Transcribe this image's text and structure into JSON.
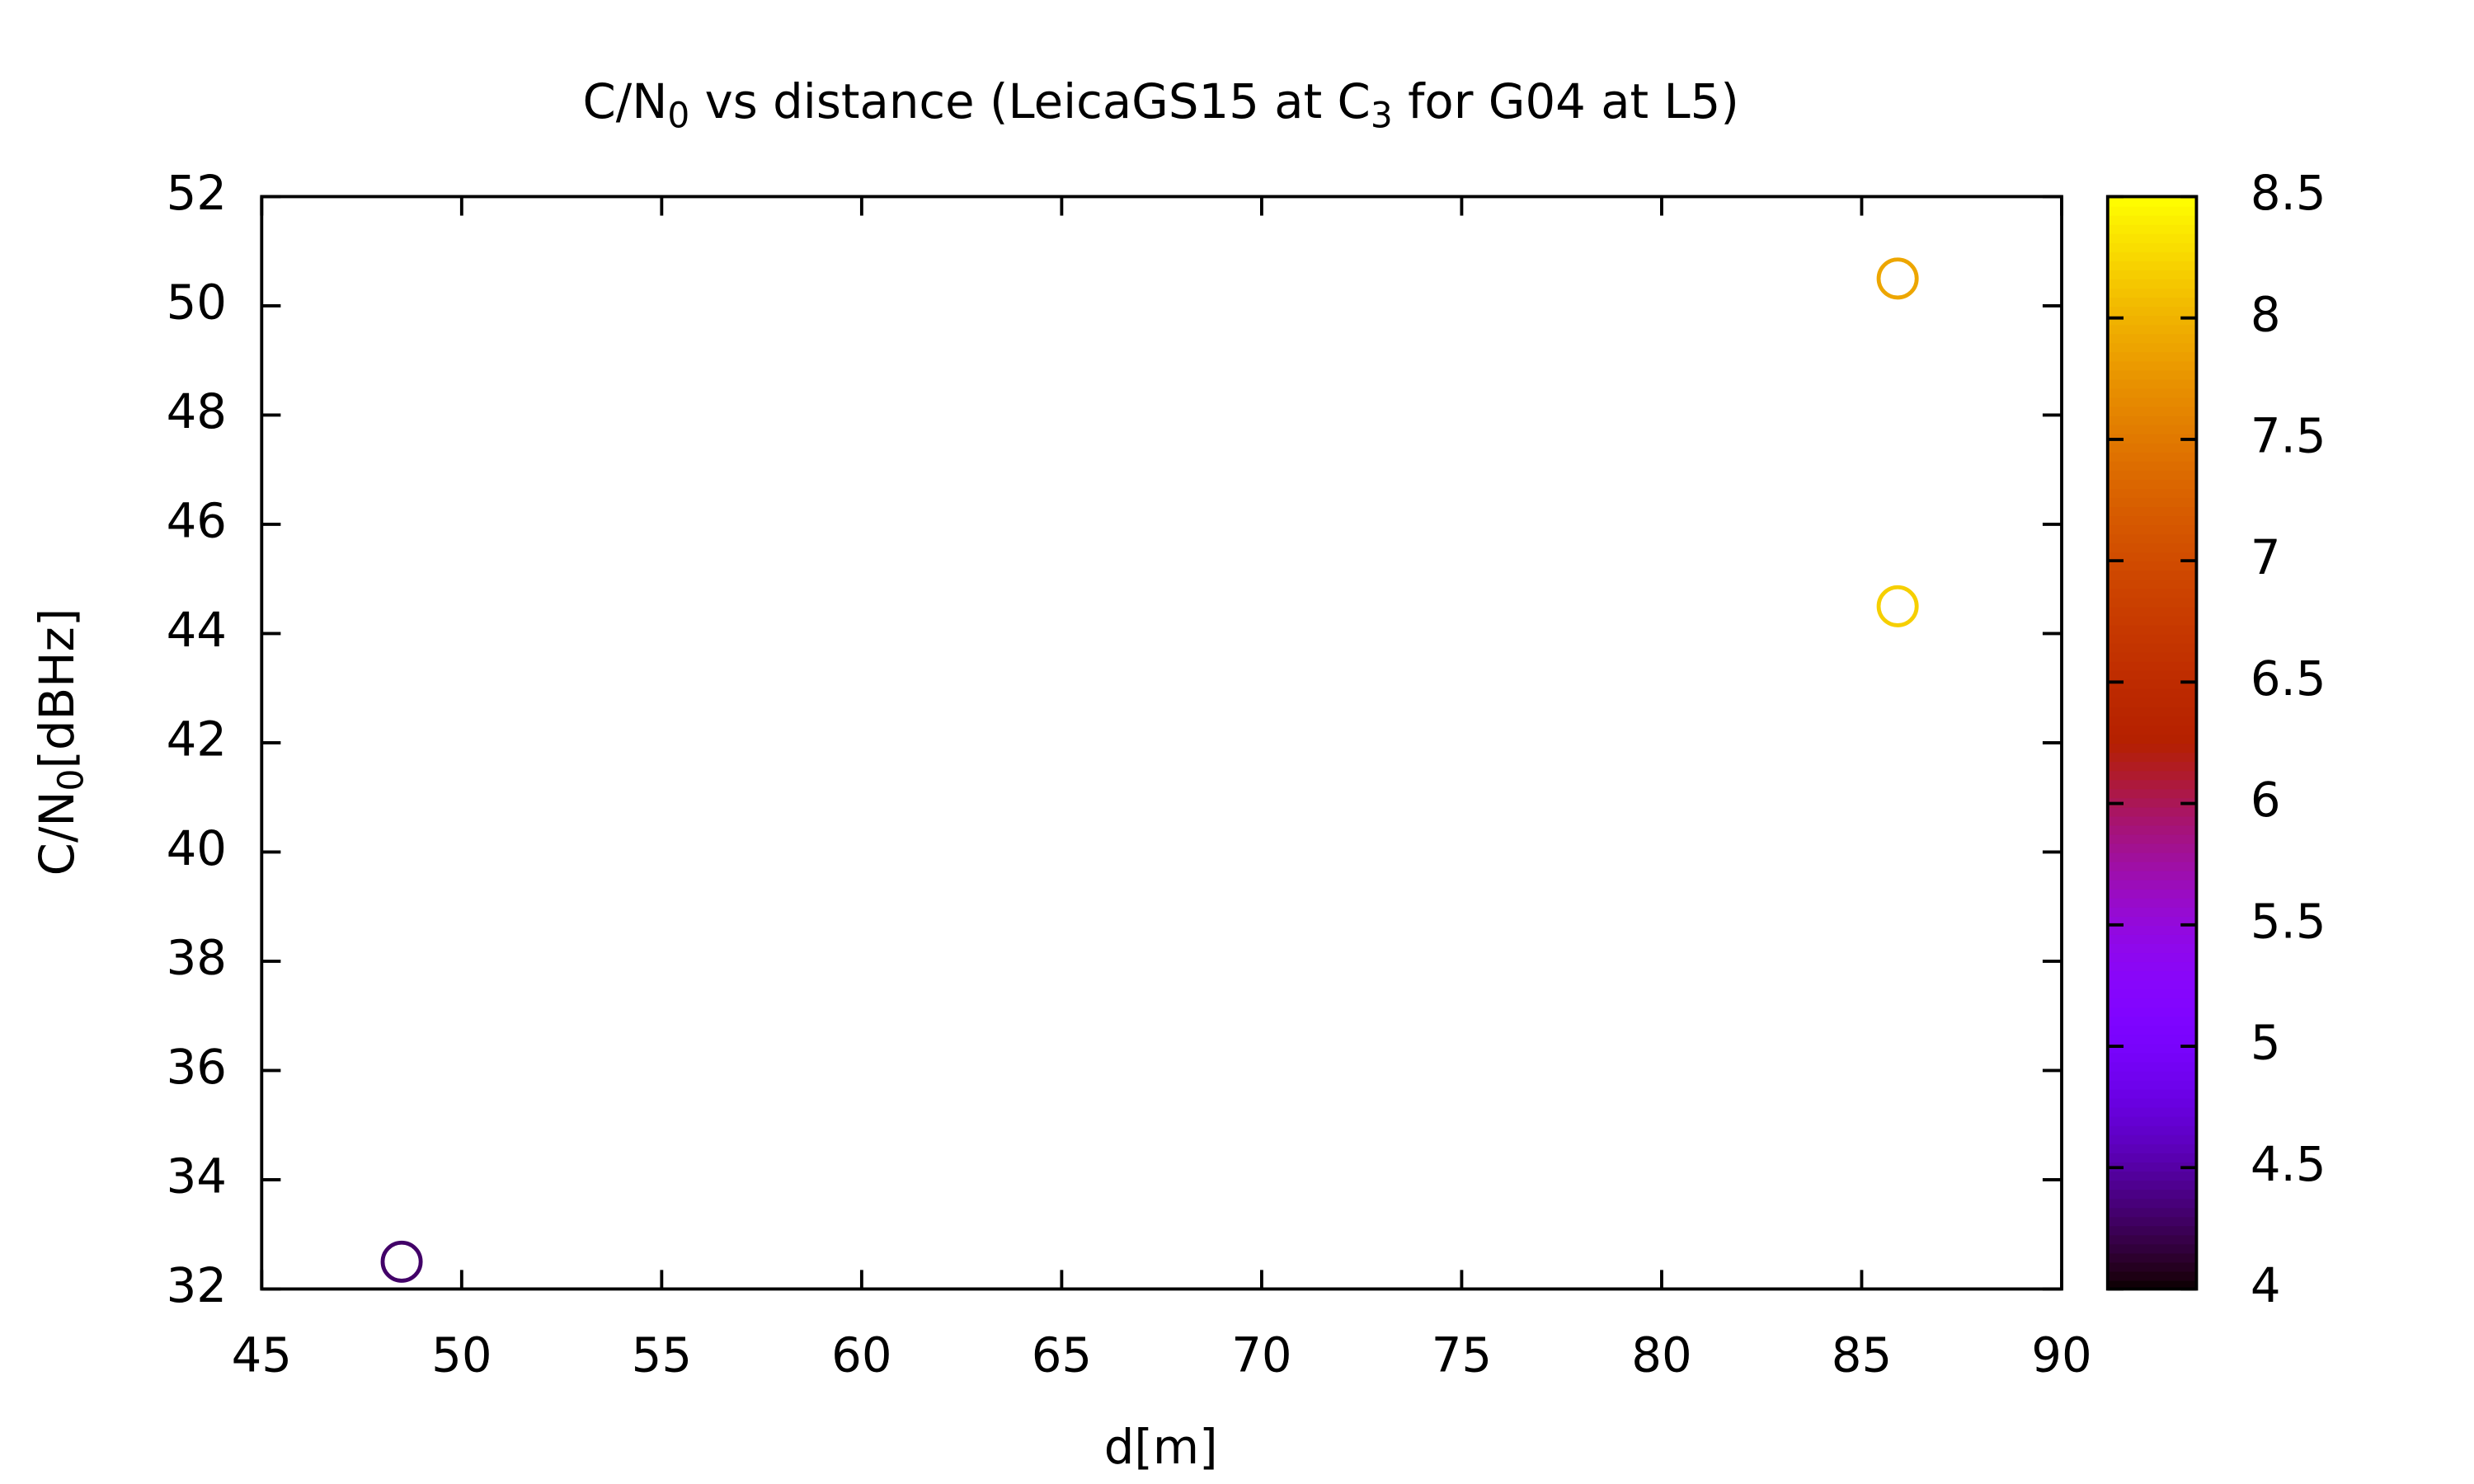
{
  "chart_data": {
    "type": "scatter",
    "title": [
      "C/N",
      "0",
      " vs distance (LeicaGS15 at C",
      "3",
      " for G04 at L5)"
    ],
    "xlabel": "d[m]",
    "ylabel": [
      "C/N",
      "0",
      "[dBHz]"
    ],
    "x": [
      48.5,
      85.9,
      85.9
    ],
    "values": [
      32.5,
      50.5,
      44.5
    ],
    "colors": [
      4.3,
      7.9,
      8.2
    ],
    "xlim": [
      45,
      90
    ],
    "xticks": [
      45,
      50,
      55,
      60,
      65,
      70,
      75,
      80,
      85,
      90
    ],
    "ylim": [
      32,
      52
    ],
    "yticks": [
      32,
      34,
      36,
      38,
      40,
      42,
      44,
      46,
      48,
      50,
      52
    ],
    "clim": [
      4,
      8.5
    ],
    "cticks": [
      4,
      4.5,
      5,
      5.5,
      6,
      6.5,
      7,
      7.5,
      8,
      8.5
    ],
    "palette": "gnuplot",
    "grid": false
  }
}
